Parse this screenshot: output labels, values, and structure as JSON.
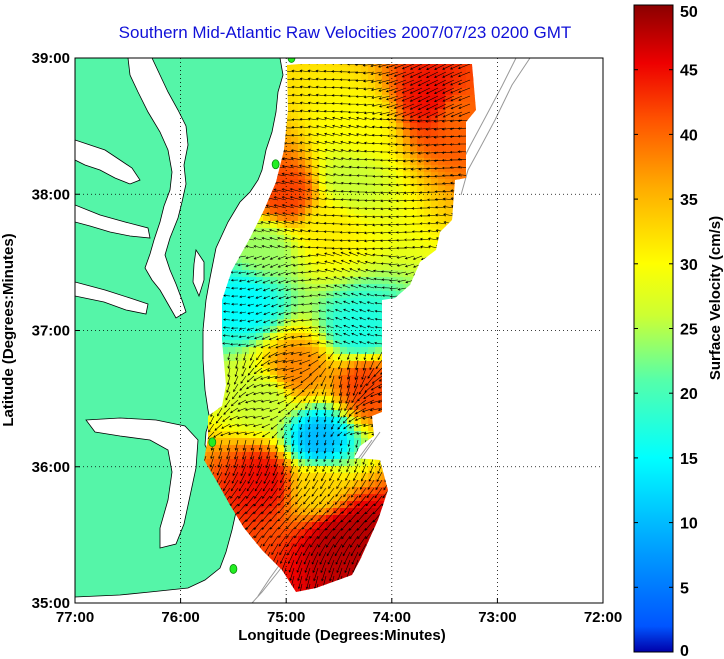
{
  "title": "Southern Mid-Atlantic Raw Velocities 2007/07/23 0200 GMT",
  "x_axis": {
    "label": "Longitude (Degrees:Minutes)",
    "ticks": [
      "77:00",
      "76:00",
      "75:00",
      "74:00",
      "73:00",
      "72:00"
    ],
    "tick_values": [
      -77,
      -76,
      -75,
      -74,
      -73,
      -72
    ]
  },
  "y_axis": {
    "label": "Latitude (Degrees:Minutes)",
    "ticks": [
      "39:00",
      "38:00",
      "37:00",
      "36:00",
      "35:00"
    ],
    "tick_values": [
      39,
      38,
      37,
      36,
      35
    ]
  },
  "colorbar": {
    "label": "Surface Velocity (cm/s)",
    "min": 0,
    "max": 50,
    "ticks": [
      "50",
      "45",
      "40",
      "35",
      "30",
      "25",
      "20",
      "15",
      "10",
      "5",
      "0"
    ],
    "tick_values": [
      50,
      45,
      40,
      35,
      30,
      25,
      20,
      15,
      10,
      5,
      0
    ],
    "colormap": "jet"
  },
  "colors": {
    "land": "#55f5a8",
    "water": "#ffffff",
    "title": "#1010d8",
    "grid": "#000000",
    "vectors": "#000000",
    "stations": "#22ee22",
    "bathymetry": "#999999"
  },
  "chart_data": {
    "type": "heatmap",
    "title": "Southern Mid-Atlantic Raw Velocities 2007/07/23 0200 GMT",
    "xlabel": "Longitude (Degrees:Minutes)",
    "ylabel": "Latitude (Degrees:Minutes)",
    "xlim": [
      -77,
      -72
    ],
    "ylim": [
      35,
      39
    ],
    "grid": true,
    "zlabel": "Surface Velocity (cm/s)",
    "zlim": [
      0,
      50
    ],
    "speed_regions": [
      {
        "lon": -74.3,
        "lat": 38.5,
        "speed": 30
      },
      {
        "lon": -73.6,
        "lat": 38.7,
        "speed": 45
      },
      {
        "lon": -73.4,
        "lat": 38.6,
        "speed": 40
      },
      {
        "lon": -74.4,
        "lat": 38.1,
        "speed": 26
      },
      {
        "lon": -75.0,
        "lat": 38.0,
        "speed": 42
      },
      {
        "lon": -74.6,
        "lat": 37.75,
        "speed": 31
      },
      {
        "lon": -75.2,
        "lat": 37.6,
        "speed": 24
      },
      {
        "lon": -75.4,
        "lat": 37.2,
        "speed": 15
      },
      {
        "lon": -74.3,
        "lat": 37.0,
        "speed": 17
      },
      {
        "lon": -74.9,
        "lat": 36.7,
        "speed": 38
      },
      {
        "lon": -74.25,
        "lat": 36.6,
        "speed": 42
      },
      {
        "lon": -75.2,
        "lat": 36.5,
        "speed": 26
      },
      {
        "lon": -74.7,
        "lat": 36.2,
        "speed": 10
      },
      {
        "lon": -74.7,
        "lat": 35.85,
        "speed": 33
      },
      {
        "lon": -75.2,
        "lat": 35.9,
        "speed": 45
      },
      {
        "lon": -74.5,
        "lat": 35.45,
        "speed": 48
      },
      {
        "lon": -74.3,
        "lat": 35.5,
        "speed": 48
      }
    ],
    "stations": [
      {
        "lon": -74.95,
        "lat": 39.0
      },
      {
        "lon": -75.1,
        "lat": 38.22
      },
      {
        "lon": -75.7,
        "lat": 36.18
      },
      {
        "lon": -75.5,
        "lat": 35.25
      }
    ]
  }
}
